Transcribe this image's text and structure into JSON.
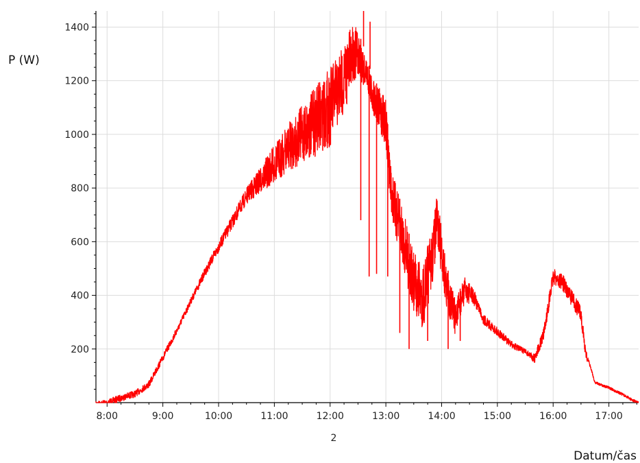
{
  "chart_data": {
    "type": "line",
    "title": "",
    "ylabel": "P (W)",
    "xlabel": "Datum/čas",
    "x_sublabel": "2",
    "xlim": [
      "07:48",
      "17:32"
    ],
    "ylim": [
      0,
      1460
    ],
    "x_ticks": [
      "8:00",
      "9:00",
      "10:00",
      "11:00",
      "12:00",
      "13:00",
      "14:00",
      "15:00",
      "16:00",
      "17:00"
    ],
    "y_ticks": [
      200,
      400,
      600,
      800,
      1000,
      1200,
      1400
    ],
    "grid": true,
    "legend": "none",
    "series": [
      {
        "color": "#ff0000",
        "points": [
          [
            "07:48",
            5
          ],
          [
            "08:00",
            12
          ],
          [
            "08:15",
            30
          ],
          [
            "08:30",
            45
          ],
          [
            "08:45",
            80
          ],
          [
            "09:00",
            180
          ],
          [
            "09:15",
            280
          ],
          [
            "09:30",
            390
          ],
          [
            "09:45",
            500
          ],
          [
            "10:00",
            600
          ],
          [
            "10:15",
            700
          ],
          [
            "10:30",
            800
          ],
          [
            "10:45",
            880
          ],
          [
            "11:00",
            960
          ],
          [
            "11:15",
            1040
          ],
          [
            "11:30",
            1110
          ],
          [
            "11:45",
            1180
          ],
          [
            "12:00",
            1250
          ],
          [
            "12:15",
            1340
          ],
          [
            "12:25",
            1420
          ],
          [
            "12:35",
            1340
          ],
          [
            "12:45",
            1220
          ],
          [
            "13:00",
            1130
          ],
          [
            "13:05",
            900
          ],
          [
            "13:10",
            820
          ],
          [
            "13:20",
            700
          ],
          [
            "13:30",
            560
          ],
          [
            "13:40",
            520
          ],
          [
            "13:50",
            650
          ],
          [
            "13:55",
            780
          ],
          [
            "14:05",
            520
          ],
          [
            "14:15",
            380
          ],
          [
            "14:25",
            470
          ],
          [
            "14:35",
            420
          ],
          [
            "14:45",
            330
          ],
          [
            "15:00",
            280
          ],
          [
            "15:15",
            230
          ],
          [
            "15:30",
            200
          ],
          [
            "15:40",
            180
          ],
          [
            "15:50",
            280
          ],
          [
            "16:00",
            500
          ],
          [
            "16:10",
            480
          ],
          [
            "16:20",
            420
          ],
          [
            "16:30",
            360
          ],
          [
            "16:35",
            200
          ],
          [
            "16:45",
            80
          ],
          [
            "17:00",
            60
          ],
          [
            "17:15",
            35
          ],
          [
            "17:25",
            15
          ],
          [
            "17:32",
            3
          ]
        ],
        "noise_band": [
          [
            "09:30",
            25
          ],
          [
            "10:00",
            40
          ],
          [
            "10:30",
            60
          ],
          [
            "11:00",
            140
          ],
          [
            "11:30",
            220
          ],
          [
            "12:00",
            300
          ],
          [
            "12:20",
            250
          ],
          [
            "12:40",
            120
          ],
          [
            "13:10",
            200
          ],
          [
            "13:40",
            250
          ],
          [
            "14:10",
            150
          ],
          [
            "14:40",
            40
          ],
          [
            "15:30",
            20
          ],
          [
            "16:00",
            60
          ],
          [
            "16:30",
            60
          ],
          [
            "16:40",
            10
          ]
        ],
        "spikes": [
          [
            "12:33",
            680
          ],
          [
            "12:42",
            470
          ],
          [
            "12:50",
            480
          ],
          [
            "13:02",
            470
          ],
          [
            "13:15",
            260
          ],
          [
            "13:25",
            200
          ],
          [
            "13:45",
            230
          ],
          [
            "14:07",
            200
          ],
          [
            "14:20",
            230
          ],
          [
            "12:36",
            1460
          ],
          [
            "12:43",
            1420
          ]
        ]
      }
    ]
  }
}
